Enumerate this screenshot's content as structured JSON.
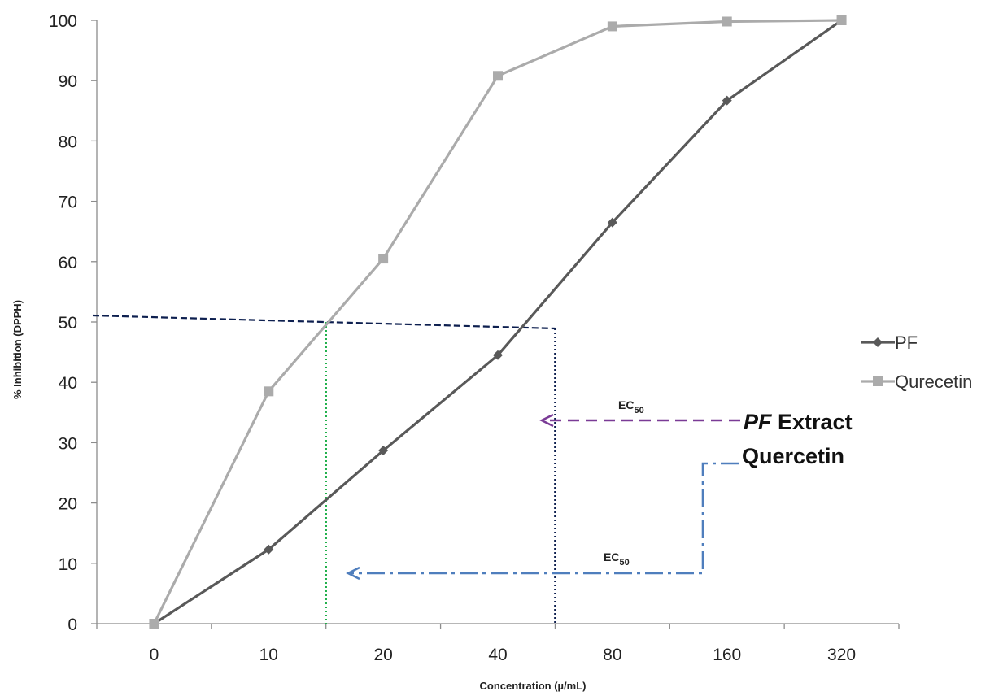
{
  "chart_data": {
    "type": "line",
    "categories": [
      "0",
      "10",
      "20",
      "40",
      "80",
      "160",
      "320"
    ],
    "xlabel": "Concentration (µ/mL)",
    "ylabel": "% Inhibition (DPPH)",
    "ylim": [
      0,
      100
    ],
    "yticks": [
      "0",
      "10",
      "20",
      "30",
      "40",
      "50",
      "60",
      "70",
      "80",
      "90",
      "100"
    ],
    "grid": false,
    "legend_position": "right",
    "series": [
      {
        "name": "PF",
        "color": "#595959",
        "marker": "diamond",
        "values": [
          0,
          12.3,
          28.7,
          44.5,
          66.5,
          86.7,
          100
        ]
      },
      {
        "name": "Qurecetin",
        "color": "#ababab",
        "marker": "square",
        "values": [
          0,
          38.5,
          60.5,
          90.8,
          99.0,
          99.8,
          100
        ]
      }
    ],
    "annotations": {
      "ec50_level": 50,
      "ec50_label_main": "EC",
      "ec50_label_sub": "50",
      "pf_extract_italic": "PF",
      "pf_extract_rest": " Extract",
      "quercetin_label": "Quercetin",
      "pf_ec50_category_position": 3.5,
      "quercetin_ec50_category_position": 1.5,
      "pf_ec50_color": "#0d1f4f",
      "quercetin_ec50_color": "#1fb04a",
      "pf_arrow_color": "#7a3b96",
      "quercetin_arrow_color": "#4f7ebd"
    }
  }
}
